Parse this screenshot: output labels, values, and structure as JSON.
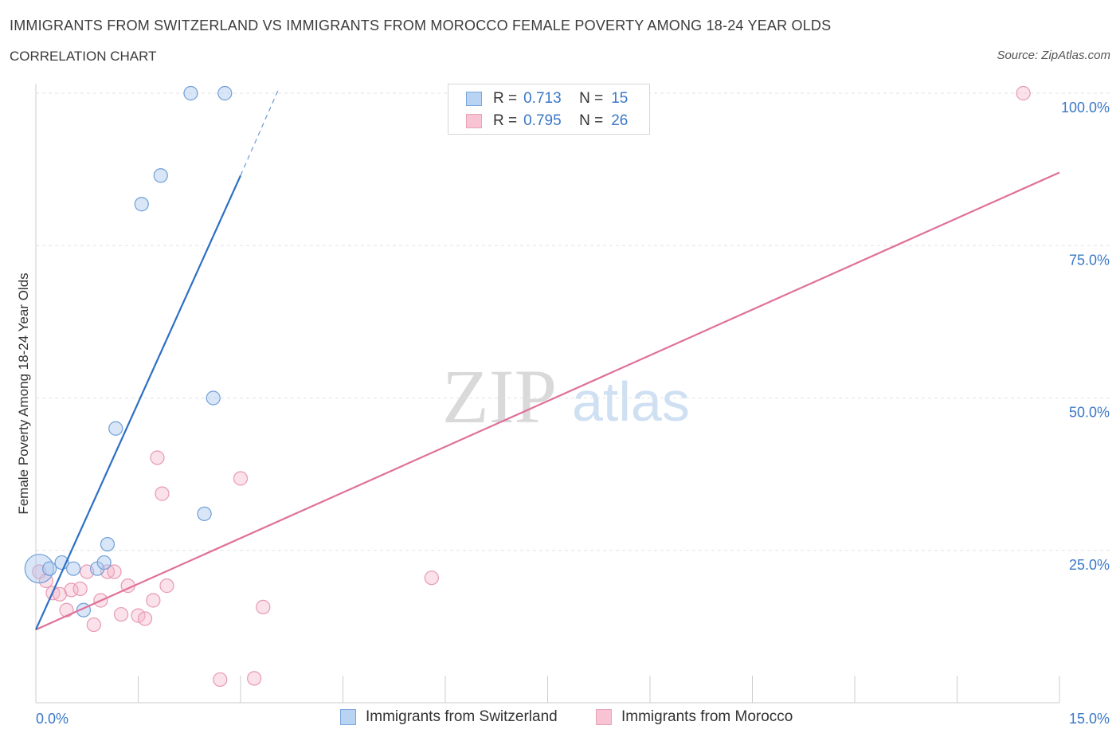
{
  "header": {
    "title": "IMMIGRANTS FROM SWITZERLAND VS IMMIGRANTS FROM MOROCCO FEMALE POVERTY AMONG 18-24 YEAR OLDS",
    "subtitle": "CORRELATION CHART",
    "source": "Source: ZipAtlas.com"
  },
  "legend": {
    "r_label": "R =",
    "n_label": "N =",
    "rows": [
      {
        "r": "0.713",
        "n": "15",
        "fill": "#b9d3f3",
        "stroke": "#7aa6dc"
      },
      {
        "r": "0.795",
        "n": "26",
        "fill": "#f8c4d4",
        "stroke": "#e8a2b8"
      }
    ]
  },
  "watermark": {
    "zip": "ZIP",
    "atlas": "atlas"
  },
  "colors": {
    "switzerland_line": "#2c6fc5",
    "morocco_line": "#e07099",
    "switzerland_point_fill": "rgba(170,200,240,0.45)",
    "switzerland_point_stroke": "#6f9fd8",
    "morocco_point_fill": "rgba(246,180,200,0.40)",
    "morocco_point_stroke": "#e79ab3",
    "grid": "#e2e2e2",
    "tick_text": "#3a78c8"
  },
  "chart_data": {
    "type": "scatter",
    "title": "IMMIGRANTS FROM SWITZERLAND VS IMMIGRANTS FROM MOROCCO FEMALE POVERTY AMONG 18-24 YEAR OLDS",
    "xlabel": "",
    "ylabel": "Female Poverty Among 18-24 Year Olds",
    "xlim": [
      0,
      15
    ],
    "ylim": [
      0,
      100
    ],
    "x_tick_labels": [
      {
        "value": 0,
        "label": "0.0%"
      },
      {
        "value": 15,
        "label": "15.0%"
      }
    ],
    "y_tick_labels": [
      {
        "value": 25,
        "label": "25.0%"
      },
      {
        "value": 50,
        "label": "50.0%"
      },
      {
        "value": 75,
        "label": "75.0%"
      },
      {
        "value": 100,
        "label": "100.0%"
      }
    ],
    "x_minor_ticks": [
      0,
      1.5,
      3,
      4.5,
      6,
      7.5,
      9,
      10.5,
      12,
      13.5,
      15
    ],
    "grid": true,
    "legend_position": "top-center",
    "series": [
      {
        "name": "Immigrants from Switzerland",
        "r": 0.713,
        "n": 15,
        "points": [
          {
            "x": 0.05,
            "y": 22.0,
            "size": "large"
          },
          {
            "x": 0.2,
            "y": 22.0
          },
          {
            "x": 0.38,
            "y": 23.0
          },
          {
            "x": 0.55,
            "y": 22.0
          },
          {
            "x": 0.7,
            "y": 15.2
          },
          {
            "x": 0.9,
            "y": 22.0
          },
          {
            "x": 1.0,
            "y": 23.0
          },
          {
            "x": 1.05,
            "y": 26.0
          },
          {
            "x": 1.17,
            "y": 45.0
          },
          {
            "x": 1.55,
            "y": 81.8
          },
          {
            "x": 1.83,
            "y": 86.5
          },
          {
            "x": 2.27,
            "y": 100.0
          },
          {
            "x": 2.47,
            "y": 31.0
          },
          {
            "x": 2.6,
            "y": 50.0
          },
          {
            "x": 2.77,
            "y": 100.0
          }
        ],
        "trend": {
          "x_start": 0,
          "y_start": 12.0,
          "x_end": 3.0,
          "y_end": 86.5,
          "dash_x_end": 3.55,
          "dash_y_end": 100.5
        }
      },
      {
        "name": "Immigrants from Morocco",
        "r": 0.795,
        "n": 26,
        "points": [
          {
            "x": 0.05,
            "y": 21.5
          },
          {
            "x": 0.15,
            "y": 20.0
          },
          {
            "x": 0.25,
            "y": 18.0
          },
          {
            "x": 0.35,
            "y": 17.8
          },
          {
            "x": 0.45,
            "y": 15.2
          },
          {
            "x": 0.52,
            "y": 18.5
          },
          {
            "x": 0.65,
            "y": 18.7
          },
          {
            "x": 0.75,
            "y": 21.5
          },
          {
            "x": 0.85,
            "y": 12.8
          },
          {
            "x": 0.95,
            "y": 16.8
          },
          {
            "x": 1.05,
            "y": 21.5
          },
          {
            "x": 1.15,
            "y": 21.5
          },
          {
            "x": 1.25,
            "y": 14.5
          },
          {
            "x": 1.35,
            "y": 19.2
          },
          {
            "x": 1.5,
            "y": 14.3
          },
          {
            "x": 1.6,
            "y": 13.8
          },
          {
            "x": 1.72,
            "y": 16.8
          },
          {
            "x": 1.78,
            "y": 40.2
          },
          {
            "x": 1.85,
            "y": 34.3
          },
          {
            "x": 1.92,
            "y": 19.2
          },
          {
            "x": 2.7,
            "y": 3.8
          },
          {
            "x": 3.0,
            "y": 36.8
          },
          {
            "x": 3.2,
            "y": 4.0
          },
          {
            "x": 3.33,
            "y": 15.7
          },
          {
            "x": 5.8,
            "y": 20.5
          },
          {
            "x": 14.47,
            "y": 100.0
          }
        ],
        "trend": {
          "x_start": 0,
          "y_start": 12.0,
          "x_end": 15.0,
          "y_end": 87.0
        }
      }
    ]
  },
  "bottom_legend": [
    {
      "label": "Immigrants from Switzerland"
    },
    {
      "label": "Immigrants from Morocco"
    }
  ]
}
